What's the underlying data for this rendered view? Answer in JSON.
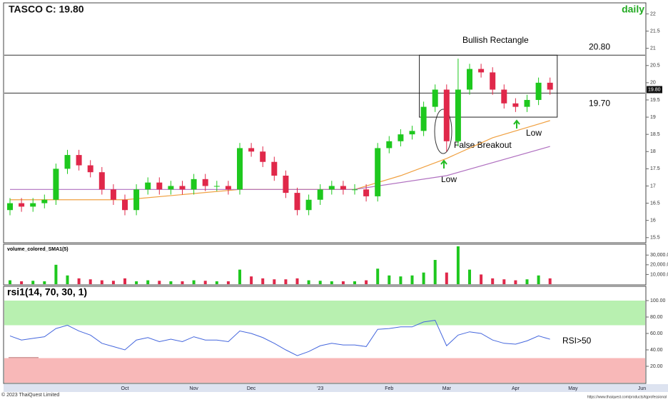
{
  "chart_data": {
    "type": "candlestick",
    "title": "TASCO C: 19.80",
    "interval": "daily",
    "open": [
      16.3,
      16.5,
      16.4,
      16.5,
      16.6,
      17.5,
      17.9,
      17.6,
      17.4,
      16.9,
      16.6,
      16.3,
      16.9,
      17.1,
      16.9,
      17.0,
      16.9,
      17.2,
      17.0,
      17.0,
      16.9,
      18.1,
      18.0,
      17.7,
      17.3,
      16.8,
      16.3,
      16.6,
      16.9,
      17.0,
      16.9,
      16.9,
      16.7,
      18.1,
      18.3,
      18.5,
      18.6,
      19.3,
      19.8,
      18.3,
      19.8,
      20.4,
      20.3,
      19.8,
      19.4,
      19.3,
      19.5,
      20.0
    ],
    "high": [
      16.65,
      16.65,
      16.65,
      16.75,
      17.65,
      18.05,
      18.05,
      17.75,
      17.55,
      17.05,
      16.75,
      17.05,
      17.25,
      17.25,
      17.15,
      17.15,
      17.35,
      17.35,
      17.15,
      17.15,
      18.25,
      18.25,
      18.15,
      17.85,
      17.45,
      16.95,
      16.75,
      17.05,
      17.15,
      17.15,
      17.05,
      17.05,
      18.25,
      18.45,
      18.65,
      18.75,
      19.45,
      19.95,
      19.95,
      20.7,
      20.55,
      20.55,
      20.45,
      19.95,
      19.55,
      19.65,
      20.15,
      20.15
    ],
    "low": [
      16.15,
      16.25,
      16.25,
      16.35,
      16.45,
      17.35,
      17.45,
      17.25,
      16.75,
      16.45,
      16.15,
      16.15,
      16.75,
      16.75,
      16.75,
      16.75,
      16.75,
      16.85,
      16.85,
      16.75,
      16.75,
      17.85,
      17.55,
      17.15,
      16.65,
      16.15,
      16.15,
      16.45,
      16.75,
      16.75,
      16.75,
      16.55,
      16.55,
      17.95,
      18.15,
      18.35,
      18.45,
      19.15,
      18.0,
      18.15,
      19.65,
      20.15,
      19.65,
      19.25,
      19.15,
      19.15,
      19.35,
      19.65
    ],
    "close": [
      16.5,
      16.4,
      16.5,
      16.6,
      17.5,
      17.9,
      17.6,
      17.4,
      16.9,
      16.6,
      16.3,
      16.9,
      17.1,
      16.9,
      17.0,
      16.9,
      17.2,
      17.0,
      17.0,
      16.9,
      18.1,
      18.0,
      17.7,
      17.3,
      16.8,
      16.3,
      16.6,
      16.9,
      17.0,
      16.9,
      16.9,
      16.7,
      18.1,
      18.3,
      18.5,
      18.6,
      19.3,
      19.8,
      18.3,
      19.8,
      20.4,
      20.3,
      19.8,
      19.4,
      19.3,
      19.5,
      20.0,
      19.8
    ],
    "up_color": "#1ec81e",
    "down_color": "#e0284a",
    "ylim": [
      15.35,
      22.3
    ],
    "yticks": [
      15.5,
      16,
      16.5,
      17,
      17.5,
      18,
      18.5,
      19,
      19.5,
      20,
      20.5,
      21,
      21.5,
      22
    ],
    "last_price": {
      "value": 19.8,
      "label": "19.80"
    },
    "moving_averages": [
      {
        "color": "#f0a040",
        "x": [
          0,
          10,
          20,
          30,
          34,
          38,
          42,
          47
        ],
        "values": [
          16.6,
          16.6,
          16.9,
          16.9,
          17.3,
          17.8,
          18.4,
          18.9
        ]
      },
      {
        "color": "#b070c0",
        "x": [
          0,
          20,
          30,
          38,
          47
        ],
        "values": [
          16.9,
          16.9,
          16.9,
          17.3,
          18.15
        ]
      }
    ],
    "levels": [
      {
        "value": 20.8,
        "label": "20.80"
      },
      {
        "value": 19.7,
        "label": "19.70"
      }
    ],
    "rectangle": {
      "from": 36,
      "to": 48,
      "top": 20.8,
      "bottom": 19.0
    },
    "annotations": [
      "Bullish Rectangle",
      "False Breakout",
      "Low",
      "Low",
      "RSI>50"
    ],
    "volume": {
      "title": "volume_colored_SMA1(5)",
      "values": [
        4000,
        3000,
        3500,
        3000,
        20000,
        9000,
        6000,
        5000,
        4000,
        3500,
        6000,
        3000,
        4000,
        3500,
        3000,
        3000,
        4000,
        3500,
        3000,
        3000,
        15000,
        8000,
        6000,
        5000,
        5000,
        6000,
        4000,
        3500,
        3000,
        3000,
        3000,
        4000,
        16000,
        9000,
        8000,
        9000,
        12000,
        25000,
        12000,
        39000,
        15000,
        10000,
        6000,
        5000,
        4000,
        5000,
        9000,
        6000
      ],
      "ylim": [
        0,
        39000
      ],
      "yticks": [
        {
          "value": 10000,
          "label": "10,000.0"
        },
        {
          "value": 20000,
          "label": "20,000.0"
        },
        {
          "value": 30000,
          "label": "30,000.0"
        }
      ]
    },
    "rsi": {
      "title": "rsi1(14, 70, 30, 1)",
      "values": [
        57,
        52,
        54,
        56,
        66,
        70,
        63,
        58,
        48,
        44,
        40,
        52,
        55,
        50,
        53,
        50,
        56,
        52,
        52,
        50,
        63,
        60,
        55,
        48,
        40,
        33,
        38,
        45,
        48,
        46,
        46,
        44,
        65,
        66,
        68,
        68,
        74,
        76,
        45,
        58,
        62,
        60,
        52,
        48,
        47,
        51,
        57,
        53
      ],
      "ylim": [
        0,
        100
      ],
      "overbought": 70,
      "oversold": 30,
      "yticks": [
        {
          "value": 20,
          "label": "20.00"
        },
        {
          "value": 40,
          "label": "40.00"
        },
        {
          "value": 60,
          "label": "60.00"
        },
        {
          "value": 80,
          "label": "80.00"
        },
        {
          "value": 100,
          "label": "100.00"
        }
      ]
    },
    "xlabels": [
      {
        "label": "Oct",
        "index": 10
      },
      {
        "label": "Nov",
        "index": 16
      },
      {
        "label": "Dec",
        "index": 21
      },
      {
        "label": "'23",
        "index": 27
      },
      {
        "label": "Feb",
        "index": 33
      },
      {
        "label": "Mar",
        "index": 38
      },
      {
        "label": "Apr",
        "index": 44
      },
      {
        "label": "May",
        "index": 49
      },
      {
        "label": "Jun",
        "index": 55
      }
    ],
    "copyright": "© 2023 ThaiQuest Limited",
    "url": "https://www.thaiquest.com/products/tqprofessional"
  }
}
